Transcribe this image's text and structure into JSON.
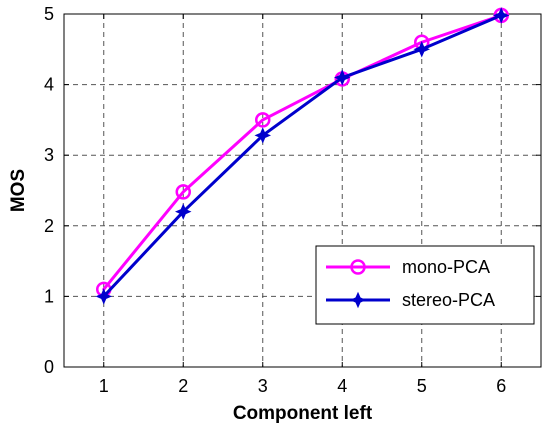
{
  "chart_data": {
    "type": "line",
    "title": "",
    "xlabel": "Component left",
    "ylabel": "MOS",
    "x": [
      1,
      2,
      3,
      4,
      5,
      6
    ],
    "xlim": [
      0.5,
      6.5
    ],
    "ylim": [
      0,
      5
    ],
    "xticks": [
      "1",
      "2",
      "3",
      "4",
      "5",
      "6"
    ],
    "yticks": [
      "0",
      "1",
      "2",
      "3",
      "4",
      "5"
    ],
    "grid": true,
    "legend_position": "lower-right",
    "series": [
      {
        "name": "mono-PCA",
        "values": [
          1.1,
          2.48,
          3.5,
          4.08,
          4.6,
          4.98
        ],
        "color": "#ff00ff",
        "marker": "circle"
      },
      {
        "name": "stereo-PCA",
        "values": [
          1.0,
          2.2,
          3.28,
          4.1,
          4.5,
          4.98
        ],
        "color": "#0000cc",
        "marker": "star"
      }
    ]
  }
}
